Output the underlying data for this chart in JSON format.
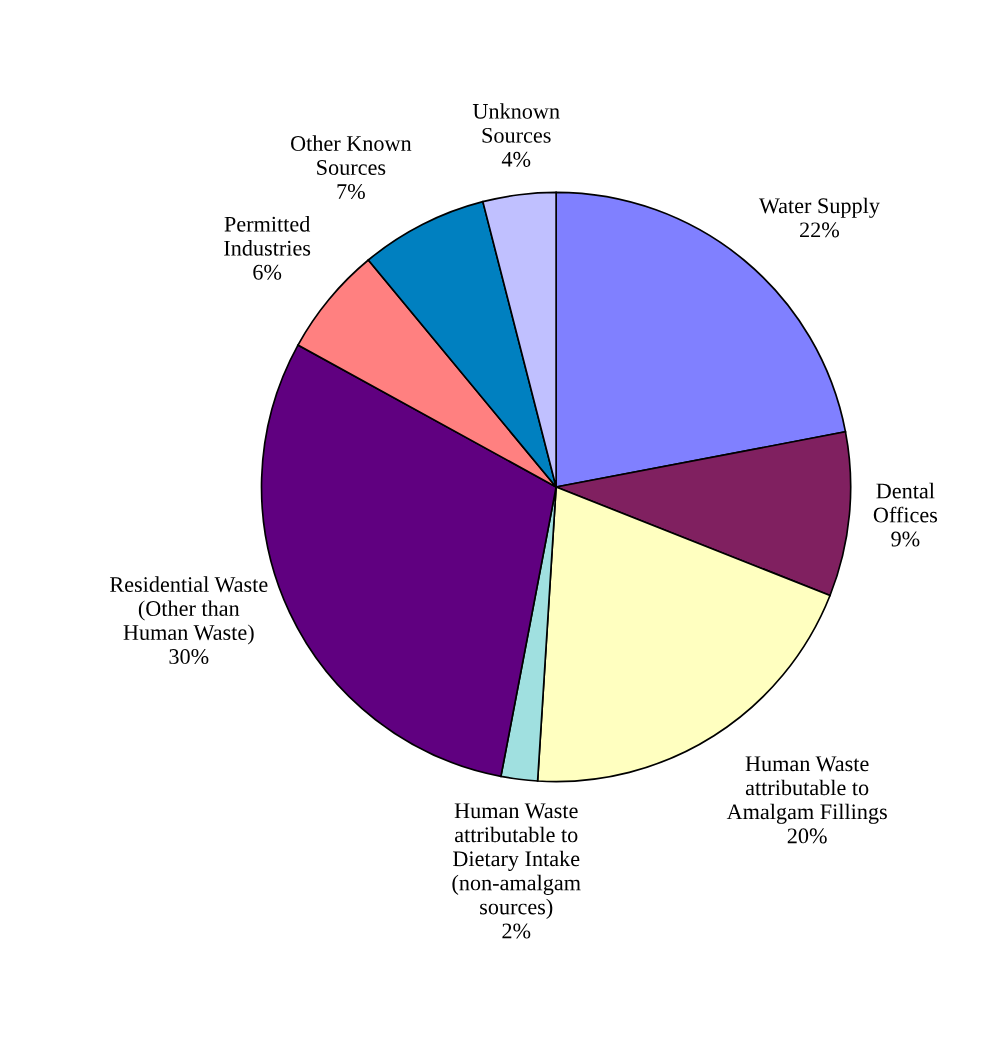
{
  "chart_data": {
    "type": "pie",
    "categories": [
      "Water Supply",
      "Dental\nOffices",
      "Human Waste\nattributable to\nAmalgam Fillings",
      "Human Waste\nattributable to\nDietary Intake\n(non-amalgam\nsources)",
      "Residential Waste\n(Other than\nHuman Waste)",
      "Permitted\nIndustries",
      "Other Known\nSources",
      "Unknown\nSources"
    ],
    "values": [
      22,
      9,
      20,
      2,
      30,
      6,
      7,
      4
    ],
    "value_labels": [
      "22%",
      "9%",
      "20%",
      "2%",
      "30%",
      "6%",
      "7%",
      "4%"
    ],
    "colors": [
      "#8080ff",
      "#802060",
      "#ffffc0",
      "#a0e0e0",
      "#600080",
      "#ff8080",
      "#0080c0",
      "#c0c0ff"
    ],
    "legend": false
  }
}
